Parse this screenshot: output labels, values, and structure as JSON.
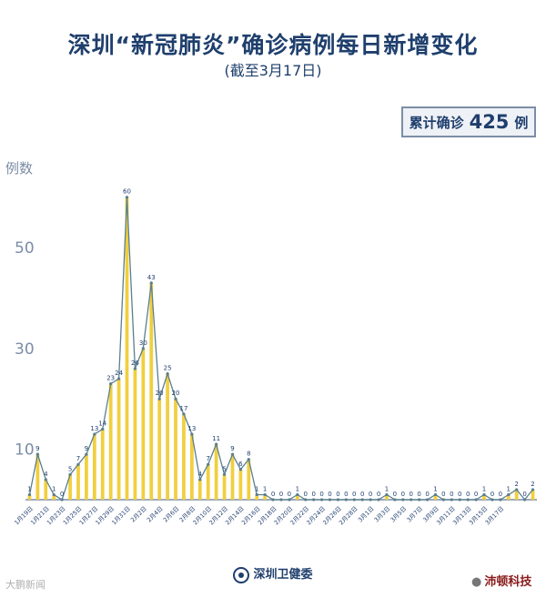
{
  "header": {
    "title": "深圳“新冠肺炎”确诊病例每日新增变化",
    "subtitle": "(截至3月17日)"
  },
  "total": {
    "prefix": "累计确诊",
    "value": "425",
    "suffix": "例"
  },
  "footer": {
    "org": "深圳卫健委",
    "watermark_left": "大鹏新闻",
    "watermark_right": "沛顿科技"
  },
  "colors": {
    "bar": "#f1cf3e",
    "line": "#5b7f8f",
    "text": "#1f3f6d",
    "axis": "#7c8da6"
  },
  "chart_data": {
    "type": "bar",
    "ylabel": "例数",
    "ylim": [
      0,
      65
    ],
    "yticks": [
      10,
      30,
      50
    ],
    "series": [
      {
        "values": [
          1,
          9,
          4,
          1,
          0,
          5,
          7,
          9,
          13,
          14,
          23,
          24,
          60,
          26,
          30,
          43,
          20,
          25,
          20,
          17,
          13,
          4,
          7,
          11,
          5,
          9,
          6,
          8,
          1,
          1,
          0,
          0,
          0,
          1,
          0,
          0,
          0,
          0,
          0,
          0,
          0,
          0,
          0,
          0,
          1,
          0,
          0,
          0,
          0,
          0,
          1,
          0,
          0,
          0,
          0,
          0,
          1,
          0,
          0,
          1,
          2,
          0,
          2
        ]
      }
    ],
    "date_labels": [
      "1月19日",
      "1月21日",
      "1月23日",
      "1月25日",
      "1月27日",
      "1月29日",
      "1月31日",
      "2月2日",
      "2月4日",
      "2月6日",
      "2月8日",
      "2月10日",
      "2月12日",
      "2月14日",
      "2月16日",
      "2月18日",
      "2月20日",
      "2月22日",
      "2月24日",
      "2月26日",
      "2月28日",
      "3月1日",
      "3月3日",
      "3月5日",
      "3月7日",
      "3月9日",
      "3月11日",
      "3月13日",
      "3月15日",
      "3月17日"
    ],
    "grid": false,
    "legend": "none"
  }
}
